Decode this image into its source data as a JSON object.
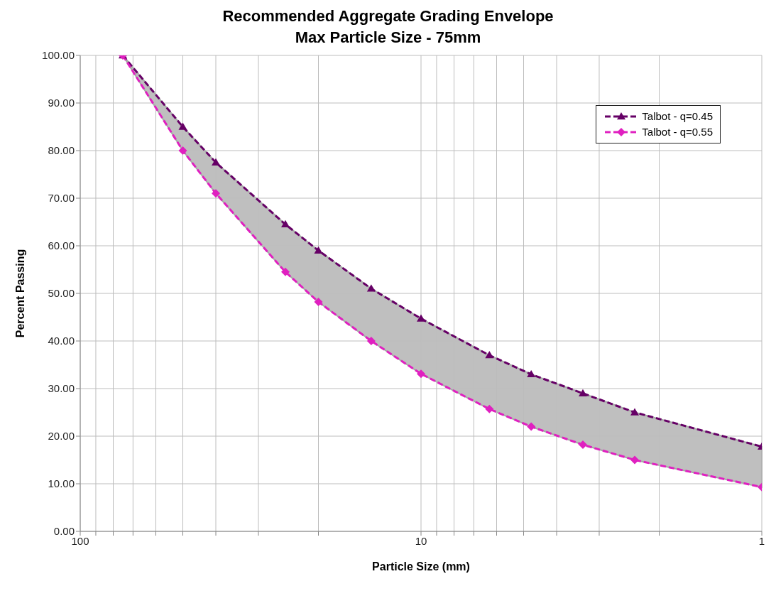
{
  "chart_data": {
    "type": "line",
    "title": "Recommended Aggregate Grading Envelope",
    "subtitle": "Max Particle Size - 75mm",
    "xlabel": "Particle Size (mm)",
    "ylabel": "Percent Passing",
    "x": [
      75,
      50,
      40,
      25,
      20,
      14,
      10,
      6.3,
      4.75,
      3.35,
      2.36,
      1
    ],
    "series": [
      {
        "name": "Talbot - q=0.45",
        "color": "#660066",
        "marker": "triangle",
        "values": [
          100,
          85,
          77.5,
          64.5,
          59,
          51,
          44.7,
          37,
          33,
          29,
          25,
          17.8
        ]
      },
      {
        "name": "Talbot - q=0.55",
        "color": "#e020c0",
        "marker": "diamond",
        "values": [
          100,
          80,
          71,
          54.5,
          48.2,
          40,
          33.1,
          25.7,
          22,
          18.2,
          15,
          9.3
        ]
      }
    ],
    "log": "x",
    "xlim": [
      100,
      1
    ],
    "xticks": [
      100,
      {
        "value": 90,
        "label": null
      },
      {
        "value": 80,
        "label": null
      },
      {
        "value": 70,
        "label": null
      },
      {
        "value": 60,
        "label": null
      },
      {
        "value": 50,
        "label": null
      },
      {
        "value": 40,
        "label": null
      },
      {
        "value": 30,
        "label": null
      },
      {
        "value": 20,
        "label": null
      },
      10,
      {
        "value": 9,
        "label": null
      },
      {
        "value": 8,
        "label": null
      },
      {
        "value": 7,
        "label": null
      },
      {
        "value": 6,
        "label": null
      },
      {
        "value": 5,
        "label": null
      },
      {
        "value": 4,
        "label": null
      },
      {
        "value": 3,
        "label": null
      },
      {
        "value": 2,
        "label": null
      },
      1
    ],
    "ylim": [
      0,
      100
    ],
    "yticks": [
      {
        "value": 0,
        "label": "0.00"
      },
      {
        "value": 10,
        "label": "10.00"
      },
      {
        "value": 20,
        "label": "20.00"
      },
      {
        "value": 30,
        "label": "30.00"
      },
      {
        "value": 40,
        "label": "40.00"
      },
      {
        "value": 50,
        "label": "50.00"
      },
      {
        "value": 60,
        "label": "60.00"
      },
      {
        "value": 70,
        "label": "70.00"
      },
      {
        "value": 80,
        "label": "80.00"
      },
      {
        "value": 90,
        "label": "90.00"
      },
      {
        "value": 100,
        "label": "100.00"
      }
    ],
    "grid": true,
    "legend": "top right",
    "line_style": "dashed"
  }
}
